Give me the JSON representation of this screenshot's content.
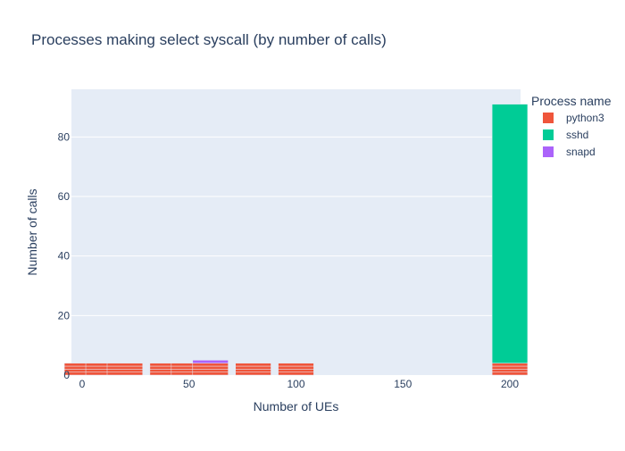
{
  "chart_data": {
    "type": "bar",
    "title": "Processes making select syscall (by number of calls)",
    "xlabel": "Number of UEs",
    "ylabel": "Number of calls",
    "xlim": [
      -5,
      205
    ],
    "ylim": [
      0,
      96
    ],
    "xticks": [
      0,
      50,
      100,
      150,
      200
    ],
    "yticks": [
      0,
      20,
      40,
      60,
      80
    ],
    "grid": true,
    "legend": {
      "title": "Process name",
      "placement": "top-right"
    },
    "stacked": true,
    "series": [
      {
        "name": "python3",
        "color": "#EF553B",
        "points": [
          {
            "x": 0,
            "stack": [
              1,
              1,
              1,
              1
            ]
          },
          {
            "x": 10,
            "stack": [
              1,
              1,
              1,
              1
            ]
          },
          {
            "x": 20,
            "stack": [
              1,
              1,
              1,
              1
            ]
          },
          {
            "x": 40,
            "stack": [
              1,
              1,
              1,
              1
            ]
          },
          {
            "x": 50,
            "stack": [
              1,
              1,
              1,
              1
            ]
          },
          {
            "x": 60,
            "stack": [
              1,
              1,
              1,
              1
            ]
          },
          {
            "x": 80,
            "stack": [
              1,
              1,
              1,
              1
            ]
          },
          {
            "x": 100,
            "stack": [
              1,
              1,
              1,
              1
            ]
          },
          {
            "x": 200,
            "stack": [
              1,
              1,
              1,
              1
            ]
          }
        ]
      },
      {
        "name": "sshd",
        "color": "#00CC96",
        "points": [
          {
            "x": 200,
            "stack": [
              87
            ]
          }
        ]
      },
      {
        "name": "snapd",
        "color": "#AB63FA",
        "points": [
          {
            "x": 60,
            "stack": [
              1
            ]
          }
        ]
      }
    ]
  }
}
